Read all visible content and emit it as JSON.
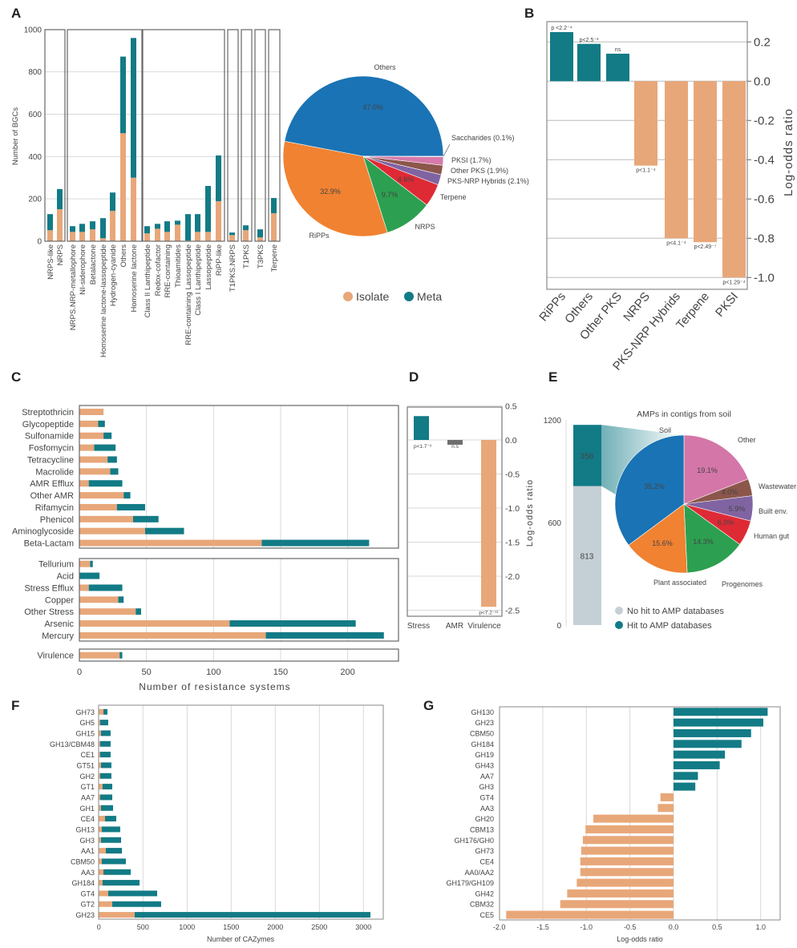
{
  "panel_labels": [
    "A",
    "B",
    "C",
    "D",
    "E",
    "F",
    "G"
  ],
  "colors": {
    "isolate": "#e8a779",
    "meta": "#127b86",
    "grid": "#d9d9d9",
    "frame": "#666666"
  },
  "chart_data": [
    {
      "id": "A-bar",
      "type": "bar",
      "stacked": true,
      "grid": true,
      "ylabel": "Number of BGCs",
      "ylim": [
        0,
        1000
      ],
      "yticks": [
        "0",
        "200",
        "400",
        "600",
        "800",
        "1000"
      ],
      "categories": [
        {
          "name": "NRPS-like",
          "color": "#2ca050"
        },
        {
          "name": "NRPS",
          "color": "#2ca050"
        },
        {
          "name": "NRPS.NRP-metallophore",
          "color": "#1f77b4"
        },
        {
          "name": "NI-siderophore",
          "color": "#1f77b4"
        },
        {
          "name": "Betalactone",
          "color": "#1f77b4"
        },
        {
          "name": "Homoserine lactone-lassopeptide",
          "color": "#1f77b4"
        },
        {
          "name": "Hydrogen-cyanide",
          "color": "#1f77b4"
        },
        {
          "name": "Others",
          "color": "#1f77b4"
        },
        {
          "name": "Homoserine lactone",
          "color": "#1f77b4"
        },
        {
          "name": "Class II Lanthipeptide",
          "color": "#f08232"
        },
        {
          "name": "Redox-cofactor",
          "color": "#f08232"
        },
        {
          "name": "RRE-containing",
          "color": "#f08232"
        },
        {
          "name": "Thioamitides",
          "color": "#f08232"
        },
        {
          "name": "RRE-containing Lassopeptide",
          "color": "#f08232"
        },
        {
          "name": "Class I Lanthipeptide",
          "color": "#f08232"
        },
        {
          "name": "Lassopeptide",
          "color": "#f08232"
        },
        {
          "name": "RiPP-like",
          "color": "#f08232"
        },
        {
          "name": "T1PKS.NRPS",
          "color": "#8064a2"
        },
        {
          "name": "T1PKS",
          "color": "#e377c2"
        },
        {
          "name": "T3PKS",
          "color": "#8c564b"
        },
        {
          "name": "Terpene",
          "color": "#d62728"
        }
      ],
      "series": [
        {
          "name": "Isolate",
          "values": [
            52,
            151,
            44,
            44,
            56,
            14,
            143,
            510,
            300,
            37,
            59,
            44,
            78,
            3,
            44,
            44,
            189,
            29,
            52,
            18,
            132
          ]
        },
        {
          "name": "Meta",
          "values": [
            76,
            95,
            27,
            38,
            38,
            95,
            87,
            362,
            660,
            34,
            23,
            50,
            19,
            125,
            84,
            217,
            216,
            12,
            23,
            38,
            72
          ]
        }
      ],
      "legend": [
        "Isolate",
        "Meta"
      ]
    },
    {
      "id": "A-pie",
      "type": "pie",
      "slices": [
        {
          "label": "Others",
          "inner": "47.0%",
          "value": 47.0,
          "color": "#1a73b4"
        },
        {
          "label": "RiPPs",
          "inner": "32.9%",
          "value": 32.9,
          "color": "#f08232"
        },
        {
          "label": "NRPS",
          "inner": "9.7%",
          "value": 9.7,
          "color": "#2ca050"
        },
        {
          "label": "Terpene",
          "inner": "4.6%",
          "value": 4.6,
          "color": "#de2a35"
        },
        {
          "label": "PKS-NRP Hybrids (2.1%)",
          "inner": "",
          "value": 2.1,
          "color": "#8064a2"
        },
        {
          "label": "Other PKS (1.9%)",
          "inner": "",
          "value": 1.9,
          "color": "#8c564b"
        },
        {
          "label": "PKSI (1.7%)",
          "inner": "",
          "value": 1.7,
          "color": "#d57aab"
        },
        {
          "label": "Saccharides (0.1%)",
          "inner": "",
          "value": 0.1,
          "color": "#999999"
        }
      ]
    },
    {
      "id": "B-bar",
      "type": "bar",
      "ylabel": "Log-odds ratio",
      "ylim": [
        -1.05,
        0.3
      ],
      "grid": true,
      "yticks": [
        "0.2",
        "0.0",
        "-0.2",
        "-0.4",
        "-0.6",
        "-0.8",
        "-1.0"
      ],
      "categories": [
        {
          "name": "RiPPs",
          "color": "#f08232"
        },
        {
          "name": "Others",
          "color": "#1f77b4"
        },
        {
          "name": "Other PKS",
          "color": "#8c564b"
        },
        {
          "name": "NRPS",
          "color": "#2ca050"
        },
        {
          "name": "PKS-NRP Hybrids",
          "color": "#8064a2"
        },
        {
          "name": "Terpene",
          "color": "#d62728"
        },
        {
          "name": "PKSI",
          "color": "#e377c2"
        }
      ],
      "values": [
        0.25,
        0.19,
        0.14,
        -0.43,
        -0.8,
        -0.82,
        -1.0
      ],
      "annotations": [
        "p <2.2⁻⁴",
        "p<2.5⁻³",
        "ns",
        "p<1.1⁻⁴",
        "p<4.1⁻⁴",
        "p<2.49⁻⁷",
        "p<1.29⁻⁴"
      ]
    },
    {
      "id": "C-bar",
      "type": "bar",
      "orientation": "horizontal",
      "stacked": true,
      "grid": true,
      "xlabel": "Number of resistance systems",
      "xlim": [
        0,
        238
      ],
      "xticks": [
        "0",
        "50",
        "100",
        "150",
        "200"
      ],
      "groups": [
        {
          "categories": [
            "Streptothricin",
            "Glycopeptide",
            "Sulfonamide",
            "Fosfomycin",
            "Tetracycline",
            "Macrolide",
            "AMR Efflux",
            "Other AMR",
            "Rifamycin",
            "Phenicol",
            "Aminoglycoside",
            "Beta-Lactam"
          ],
          "series": [
            {
              "name": "Isolate",
              "values": [
                18,
                14,
                18,
                11,
                21,
                23,
                7,
                33,
                28,
                40,
                49,
                136
              ]
            },
            {
              "name": "Meta",
              "values": [
                0,
                5,
                6,
                16,
                7,
                6,
                25,
                5,
                21,
                19,
                29,
                80
              ]
            }
          ]
        },
        {
          "categories": [
            "Tellurium",
            "Acid",
            "Stress Efflux",
            "Copper",
            "Other Stress",
            "Arsenic",
            "Mercury"
          ],
          "series": [
            {
              "name": "Isolate",
              "values": [
                8,
                0,
                7,
                29,
                42,
                112,
                139
              ]
            },
            {
              "name": "Meta",
              "values": [
                2,
                15,
                25,
                4,
                4,
                94,
                88
              ]
            }
          ]
        },
        {
          "categories": [
            "Virulence"
          ],
          "series": [
            {
              "name": "Isolate",
              "values": [
                30
              ]
            },
            {
              "name": "Meta",
              "values": [
                2
              ]
            }
          ]
        }
      ]
    },
    {
      "id": "D-bar",
      "type": "bar",
      "ylabel": "Log-odds ratio",
      "ylim": [
        -2.6,
        0.5
      ],
      "grid": true,
      "yticks": [
        "0.5",
        "0.0",
        "-0.5",
        "-1.0",
        "-1.5",
        "-2.0",
        "-2.5"
      ],
      "categories": [
        "Stress",
        "AMR",
        "Virulence"
      ],
      "values": [
        0.35,
        -0.07,
        -2.45
      ],
      "bar_colors": [
        "#127b86",
        "#6e6e6e",
        "#e8a779"
      ],
      "annotations": [
        "p<1.7⁻³",
        "n.s",
        "p<7.2⁻¹¹"
      ]
    },
    {
      "id": "E-bar",
      "type": "bar",
      "stacked": true,
      "ylim": [
        0,
        1200
      ],
      "yticks": [
        "1200",
        "600",
        "0"
      ],
      "series": [
        {
          "name": "No hit to AMP databases",
          "value": 813,
          "color": "#c5d0d6"
        },
        {
          "name": "Hit to AMP databases",
          "value": 358,
          "color": "#127b86"
        }
      ],
      "legend": [
        "No hit to AMP databases",
        "Hit to AMP databases"
      ]
    },
    {
      "id": "E-pie",
      "type": "pie",
      "title": "AMPs in contigs from soil",
      "slices": [
        {
          "label": "Other",
          "inner": "19.1%",
          "value": 19.1,
          "color": "#d476a8"
        },
        {
          "label": "Wastewater",
          "inner": "4.0%",
          "value": 4.0,
          "color": "#8c564b"
        },
        {
          "label": "Built env.",
          "inner": "5.9%",
          "value": 5.9,
          "color": "#8064a2"
        },
        {
          "label": "Human gut",
          "inner": "6.0%",
          "value": 6.0,
          "color": "#de2a35"
        },
        {
          "label": "Progenomes",
          "inner": "14.3%",
          "value": 14.3,
          "color": "#2ca050"
        },
        {
          "label": "Plant associated",
          "inner": "15.6%",
          "value": 15.6,
          "color": "#f08232"
        },
        {
          "label": "Soil",
          "inner": "35.2%",
          "value": 35.2,
          "color": "#1a73b4"
        }
      ]
    },
    {
      "id": "F-bar",
      "type": "bar",
      "orientation": "horizontal",
      "stacked": true,
      "grid": true,
      "xlabel": "Number of CAZymes",
      "xlim": [
        0,
        3200
      ],
      "xticks": [
        "0",
        "500",
        "1000",
        "1500",
        "2000",
        "2500",
        "3000"
      ],
      "categories": [
        "GH73",
        "GH5",
        "GH15",
        "GH13/CBM48",
        "CE1",
        "GT51",
        "GH2",
        "GT1",
        "AA7",
        "GH1",
        "CE4",
        "GH13",
        "GH3",
        "AA1",
        "CBM50",
        "AA3",
        "GH184",
        "GT4",
        "GT2",
        "GH23"
      ],
      "series": [
        {
          "name": "Isolate",
          "values": [
            52,
            15,
            24,
            15,
            15,
            24,
            15,
            42,
            15,
            24,
            70,
            33,
            24,
            79,
            33,
            52,
            42,
            106,
            152,
            406
          ]
        },
        {
          "name": "Meta",
          "values": [
            45,
            91,
            109,
            118,
            118,
            118,
            127,
            110,
            137,
            137,
            127,
            209,
            228,
            182,
            273,
            309,
            419,
            555,
            554,
            2673
          ]
        }
      ]
    },
    {
      "id": "G-bar",
      "type": "bar",
      "orientation": "horizontal",
      "grid": true,
      "xlabel": "Log-odds ratio",
      "xlim": [
        -2.0,
        1.22
      ],
      "xticks": [
        "-2.0",
        "-1.5",
        "-1.0",
        "-0.5",
        "0.0",
        "0.5",
        "1.0"
      ],
      "categories": [
        "GH130",
        "GH23",
        "CBM50",
        "GH184",
        "GH19",
        "GH43",
        "AA7",
        "GH3",
        "GT4",
        "AA3",
        "GH20",
        "CBM13",
        "GH176/GH0",
        "GH73",
        "CE4",
        "AA0/AA2",
        "GH179/GH109",
        "GH42",
        "CBM32",
        "CE5"
      ],
      "values": [
        1.08,
        1.03,
        0.89,
        0.78,
        0.59,
        0.53,
        0.28,
        0.25,
        -0.15,
        -0.18,
        -0.92,
        -1.01,
        -1.04,
        -1.06,
        -1.07,
        -1.07,
        -1.11,
        -1.22,
        -1.3,
        -1.92
      ]
    }
  ]
}
